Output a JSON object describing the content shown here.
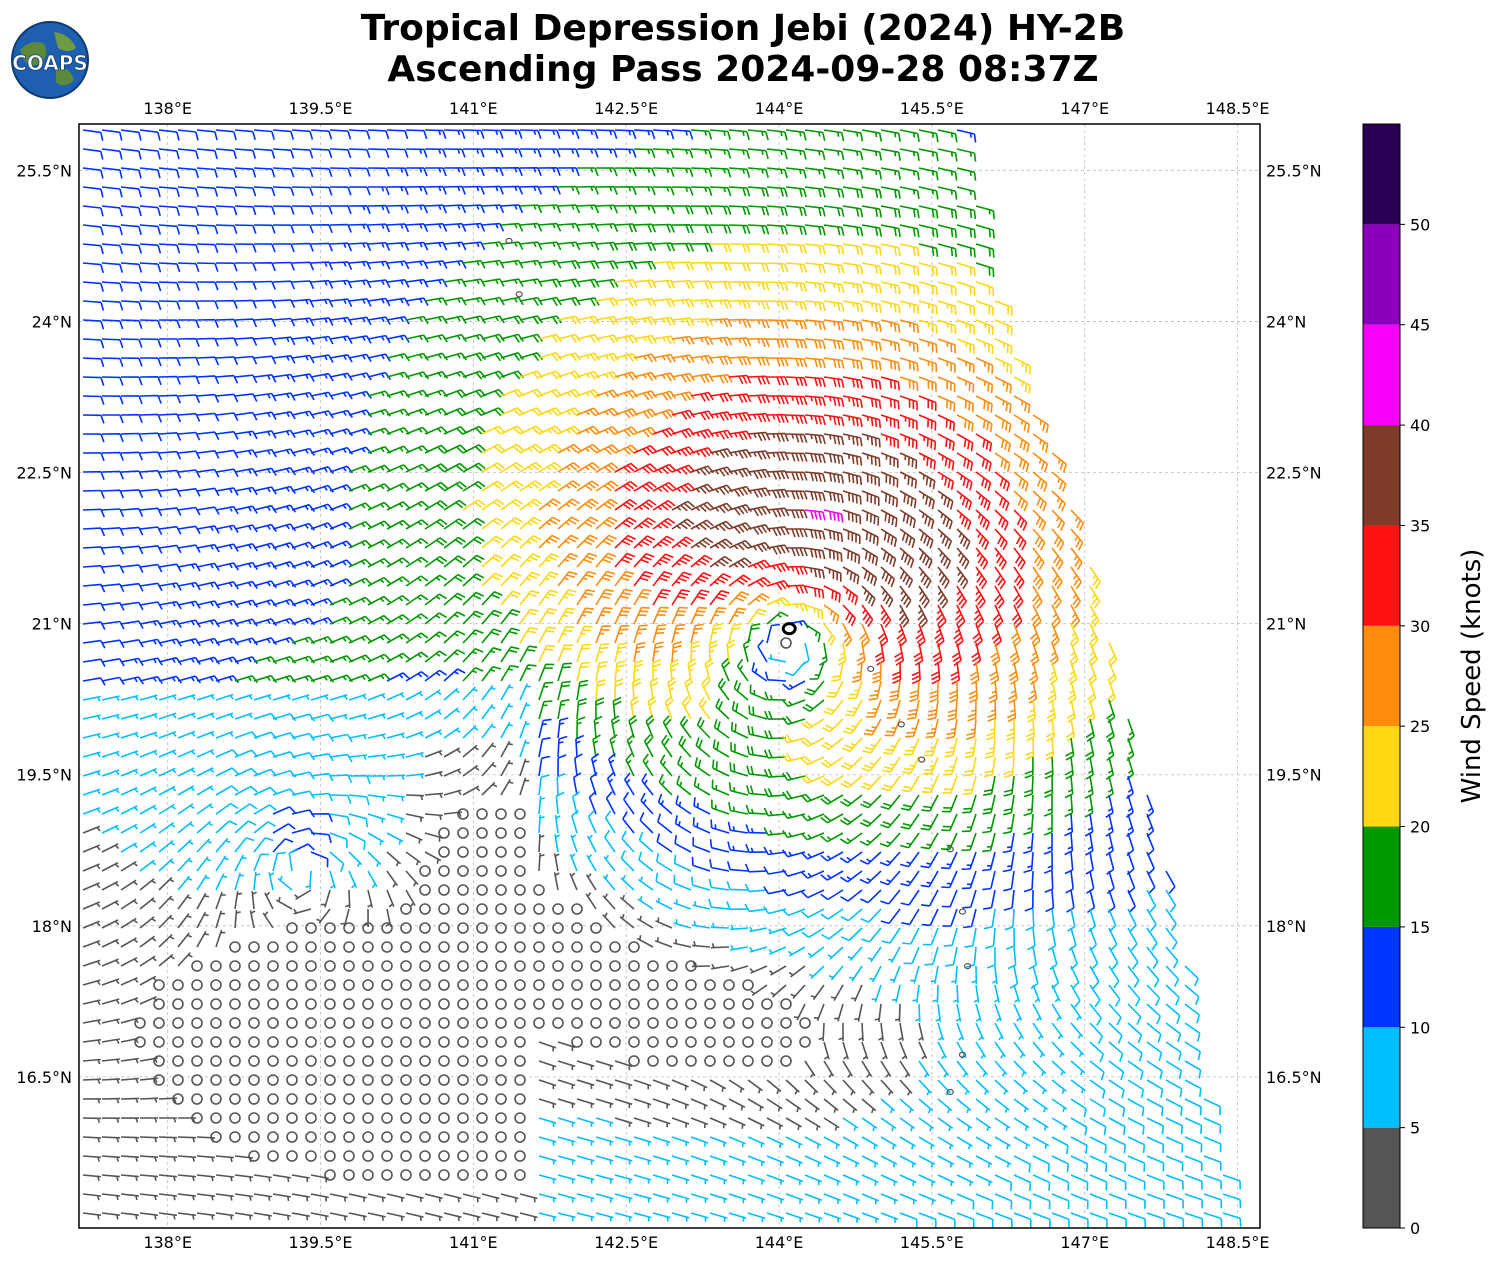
{
  "header": {
    "title_line1": "Tropical Depression Jebi (2024) HY-2B",
    "title_line2": "Ascending Pass 2024-09-28 08:37Z",
    "logo_text": "COAPS"
  },
  "map": {
    "lon_range": [
      137.13,
      148.72
    ],
    "lat_range": [
      15.0,
      25.96
    ],
    "lon_ticks": [
      "138°E",
      "139.5°E",
      "141°E",
      "142.5°E",
      "144°E",
      "145.5°E",
      "147°E",
      "148.5°E"
    ],
    "lat_ticks": [
      "25.5°N",
      "24°N",
      "22.5°N",
      "21°N",
      "19.5°N",
      "18°N",
      "16.5°N"
    ],
    "gridlines": true,
    "storm_center": {
      "lon": 144.15,
      "lat": 20.95
    }
  },
  "colorbar": {
    "label": "Wind Speed (knots)",
    "tick_labels": [
      "0",
      "5",
      "10",
      "15",
      "20",
      "25",
      "30",
      "35",
      "40",
      "45",
      "50"
    ],
    "levels": [
      0,
      5,
      10,
      15,
      20,
      25,
      30,
      35,
      40,
      45,
      50,
      55
    ],
    "colors": [
      "#555555",
      "#00bfff",
      "#0033ff",
      "#009900",
      "#ffd711",
      "#ff8c0b",
      "#ff1111",
      "#7f3a28",
      "#f700f7",
      "#8a00bb",
      "#2a0055"
    ]
  }
}
